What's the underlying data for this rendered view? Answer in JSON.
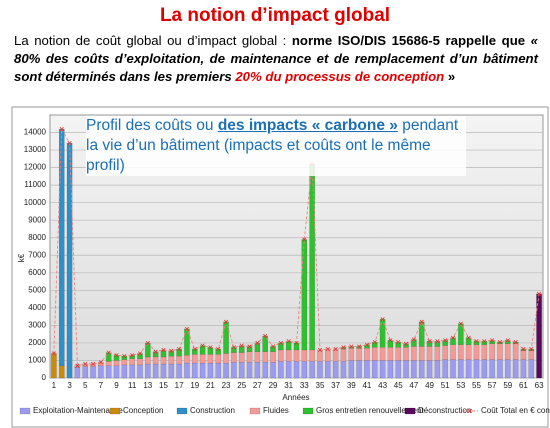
{
  "header": {
    "title": "La notion d’impact global"
  },
  "paragraph": {
    "part1": "La notion de coût global ou d’impact global : ",
    "part2": "norme ISO/DIS 15686-5 rappelle que",
    "part3": "« 80% des coûts d’exploitation, de maintenance et de remplacement d’un bâtiment sont déterminés dans les premiers ",
    "part4": "20% du processus de conception",
    "part5": " »"
  },
  "chart_data": {
    "type": "bar",
    "stacked": true,
    "grid": true,
    "legend": "bottom",
    "annotation": {
      "part1": "Profil des coûts ou ",
      "part2": "des impacts « carbone »",
      "part3": " pendant la vie d’un bâtiment (impacts et coûts ont le même profil)"
    },
    "x_label": "Années",
    "y_label": "k€",
    "ylim": [
      0,
      15000
    ],
    "yticks": [
      0,
      1000,
      2000,
      3000,
      4000,
      5000,
      6000,
      7000,
      8000,
      9000,
      10000,
      11000,
      12000,
      13000,
      14000
    ],
    "categories": [
      1,
      null,
      3,
      null,
      5,
      null,
      7,
      null,
      9,
      null,
      11,
      null,
      13,
      null,
      15,
      null,
      17,
      null,
      19,
      null,
      21,
      null,
      23,
      null,
      25,
      null,
      27,
      null,
      29,
      null,
      31,
      null,
      33,
      null,
      35,
      null,
      37,
      null,
      39,
      null,
      41,
      null,
      43,
      null,
      45,
      null,
      47,
      null,
      49,
      null,
      51,
      null,
      53,
      null,
      55,
      null,
      57,
      null,
      59,
      null,
      61,
      null,
      63
    ],
    "series": [
      {
        "name": "Exploitation-Maintenance",
        "color": "#9b9bf0",
        "values": [
          0,
          0,
          0,
          600,
          650,
          650,
          700,
          700,
          700,
          750,
          750,
          750,
          800,
          800,
          800,
          800,
          800,
          850,
          850,
          850,
          850,
          850,
          850,
          900,
          900,
          900,
          900,
          900,
          900,
          950,
          950,
          950,
          950,
          950,
          950,
          950,
          950,
          950,
          1000,
          1000,
          1000,
          1000,
          1000,
          1000,
          1000,
          1000,
          1000,
          1000,
          1000,
          1000,
          1050,
          1050,
          1050,
          1050,
          1050,
          1050,
          1050,
          1050,
          1050,
          1050,
          1050,
          1050,
          0
        ]
      },
      {
        "name": "Conception",
        "color": "#c98a10",
        "values": [
          1400,
          700,
          0,
          0,
          0,
          0,
          0,
          0,
          0,
          0,
          0,
          0,
          0,
          0,
          0,
          0,
          0,
          0,
          0,
          0,
          0,
          0,
          0,
          0,
          0,
          0,
          0,
          0,
          0,
          0,
          0,
          0,
          0,
          0,
          0,
          0,
          0,
          0,
          0,
          0,
          0,
          0,
          0,
          0,
          0,
          0,
          0,
          0,
          0,
          0,
          0,
          0,
          0,
          0,
          0,
          0,
          0,
          0,
          0,
          0,
          0,
          0,
          0
        ]
      },
      {
        "name": "Construction",
        "color": "#2f8fc8",
        "values": [
          0,
          13500,
          13400,
          0,
          0,
          0,
          0,
          0,
          0,
          0,
          0,
          0,
          0,
          0,
          0,
          0,
          0,
          0,
          0,
          0,
          0,
          0,
          0,
          0,
          0,
          0,
          0,
          0,
          0,
          0,
          0,
          0,
          0,
          0,
          0,
          0,
          0,
          0,
          0,
          0,
          0,
          0,
          0,
          0,
          0,
          0,
          0,
          0,
          0,
          0,
          0,
          0,
          0,
          0,
          0,
          0,
          0,
          0,
          0,
          0,
          0,
          0,
          0
        ]
      },
      {
        "name": "Fluides",
        "color": "#f29a96",
        "values": [
          0,
          0,
          0,
          100,
          150,
          150,
          200,
          250,
          300,
          300,
          350,
          350,
          400,
          400,
          400,
          450,
          450,
          450,
          500,
          500,
          500,
          500,
          550,
          550,
          550,
          600,
          600,
          600,
          600,
          650,
          650,
          650,
          650,
          650,
          650,
          700,
          700,
          700,
          700,
          700,
          700,
          750,
          750,
          750,
          750,
          750,
          800,
          800,
          800,
          800,
          800,
          850,
          850,
          850,
          850,
          850,
          900,
          900,
          900,
          900,
          500,
          500,
          0
        ]
      },
      {
        "name": "Gros entretien renouvellement",
        "color": "#2fbf2f",
        "values": [
          0,
          0,
          0,
          0,
          0,
          0,
          0,
          500,
          300,
          200,
          200,
          300,
          800,
          300,
          400,
          300,
          400,
          1500,
          300,
          500,
          400,
          300,
          1800,
          300,
          400,
          300,
          500,
          900,
          300,
          400,
          500,
          400,
          6300,
          10600,
          0,
          0,
          0,
          100,
          100,
          100,
          200,
          300,
          1600,
          400,
          300,
          200,
          400,
          1400,
          300,
          300,
          300,
          400,
          1200,
          400,
          200,
          200,
          200,
          100,
          200,
          100,
          100,
          100,
          0
        ]
      },
      {
        "name": "Déconstruction",
        "color": "#5a0a5a",
        "values": [
          0,
          0,
          0,
          0,
          0,
          0,
          0,
          0,
          0,
          0,
          0,
          0,
          0,
          0,
          0,
          0,
          0,
          0,
          0,
          0,
          0,
          0,
          0,
          0,
          0,
          0,
          0,
          0,
          0,
          0,
          0,
          0,
          0,
          0,
          0,
          0,
          0,
          0,
          0,
          0,
          0,
          0,
          0,
          0,
          0,
          0,
          0,
          0,
          0,
          0,
          0,
          0,
          0,
          0,
          0,
          0,
          0,
          0,
          0,
          0,
          0,
          0,
          4800
        ]
      },
      {
        "name": "Coût Total en € constants",
        "type": "line",
        "color": "#f08080",
        "values": [
          1400,
          14200,
          13400,
          700,
          800,
          800,
          900,
          1450,
          1300,
          1250,
          1300,
          1400,
          2000,
          1500,
          1600,
          1550,
          1650,
          2800,
          1650,
          1850,
          1750,
          1650,
          3200,
          1750,
          1850,
          1800,
          2000,
          2400,
          1800,
          2000,
          2100,
          2000,
          7900,
          12200,
          1600,
          1650,
          1650,
          1750,
          1800,
          1800,
          1900,
          2050,
          3350,
          2150,
          2050,
          1950,
          2200,
          3200,
          2100,
          2100,
          2150,
          2300,
          3100,
          2300,
          2100,
          2100,
          2150,
          2050,
          2150,
          2050,
          1650,
          1650,
          4800
        ]
      }
    ]
  }
}
